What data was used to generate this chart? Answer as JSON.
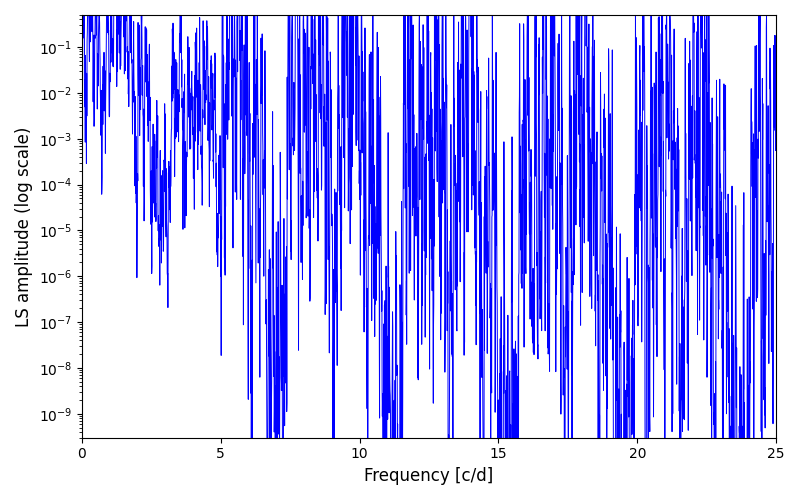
{
  "xlabel": "Frequency [c/d]",
  "ylabel": "LS amplitude (log scale)",
  "xlim": [
    0,
    25
  ],
  "ylim_log": [
    3e-10,
    0.5
  ],
  "line_color": "#0000ff",
  "line_width": 0.7,
  "figsize": [
    8.0,
    5.0
  ],
  "dpi": 100,
  "freq_max": 25.0,
  "n_points": 3000,
  "seed": 7
}
